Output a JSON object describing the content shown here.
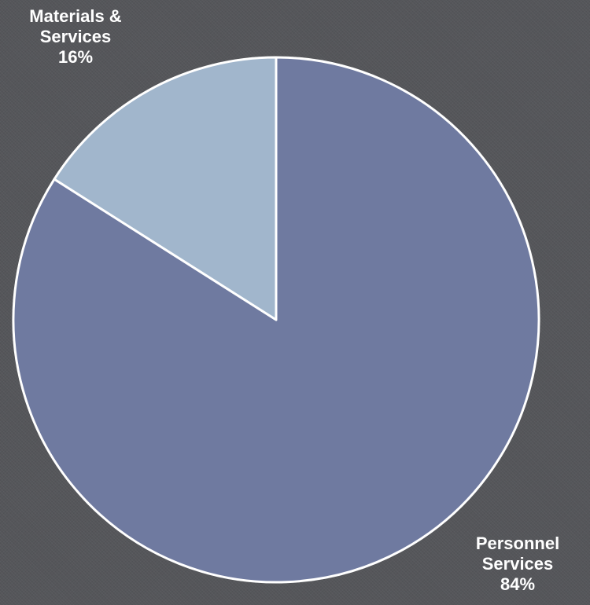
{
  "chart_data": {
    "type": "pie",
    "title": "",
    "start": "12 o'clock, clockwise",
    "slices": [
      {
        "label": "Personnel Services",
        "label_lines": [
          "Personnel",
          "Services"
        ],
        "value": 84,
        "percent_label": "84%",
        "color": "#6f7aa0"
      },
      {
        "label": "Materials & Services",
        "label_lines": [
          "Materials &",
          "Services"
        ],
        "value": 16,
        "percent_label": "16%",
        "color": "#a1b6cc"
      }
    ],
    "slice_border_color": "#ffffff",
    "legend": "none"
  },
  "colors": {
    "background": "#55565a",
    "label_text": "#ffffff"
  }
}
